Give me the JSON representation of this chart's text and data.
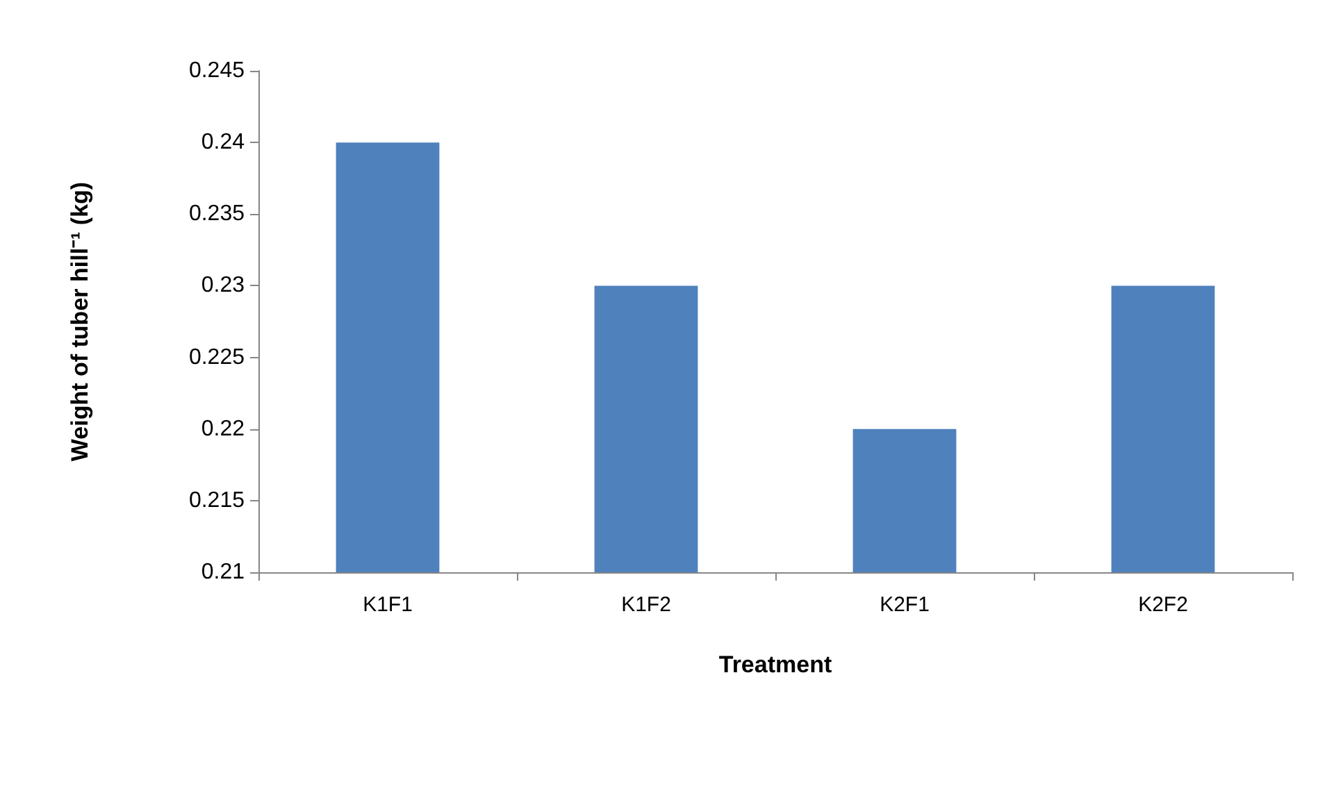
{
  "chart_data": {
    "type": "bar",
    "xlabel": "Treatment",
    "ylabel": "Weight of tuber hill⁻¹ (kg)",
    "categories": [
      "K1F1",
      "K1F2",
      "K2F1",
      "K2F2"
    ],
    "values": [
      0.24,
      0.23,
      0.22,
      0.23
    ],
    "color": "#4f81bd",
    "ylim": [
      0.21,
      0.245
    ],
    "yticks": [
      0.21,
      0.215,
      0.22,
      0.225,
      0.23,
      0.235,
      0.24,
      0.245
    ],
    "grid": false
  }
}
